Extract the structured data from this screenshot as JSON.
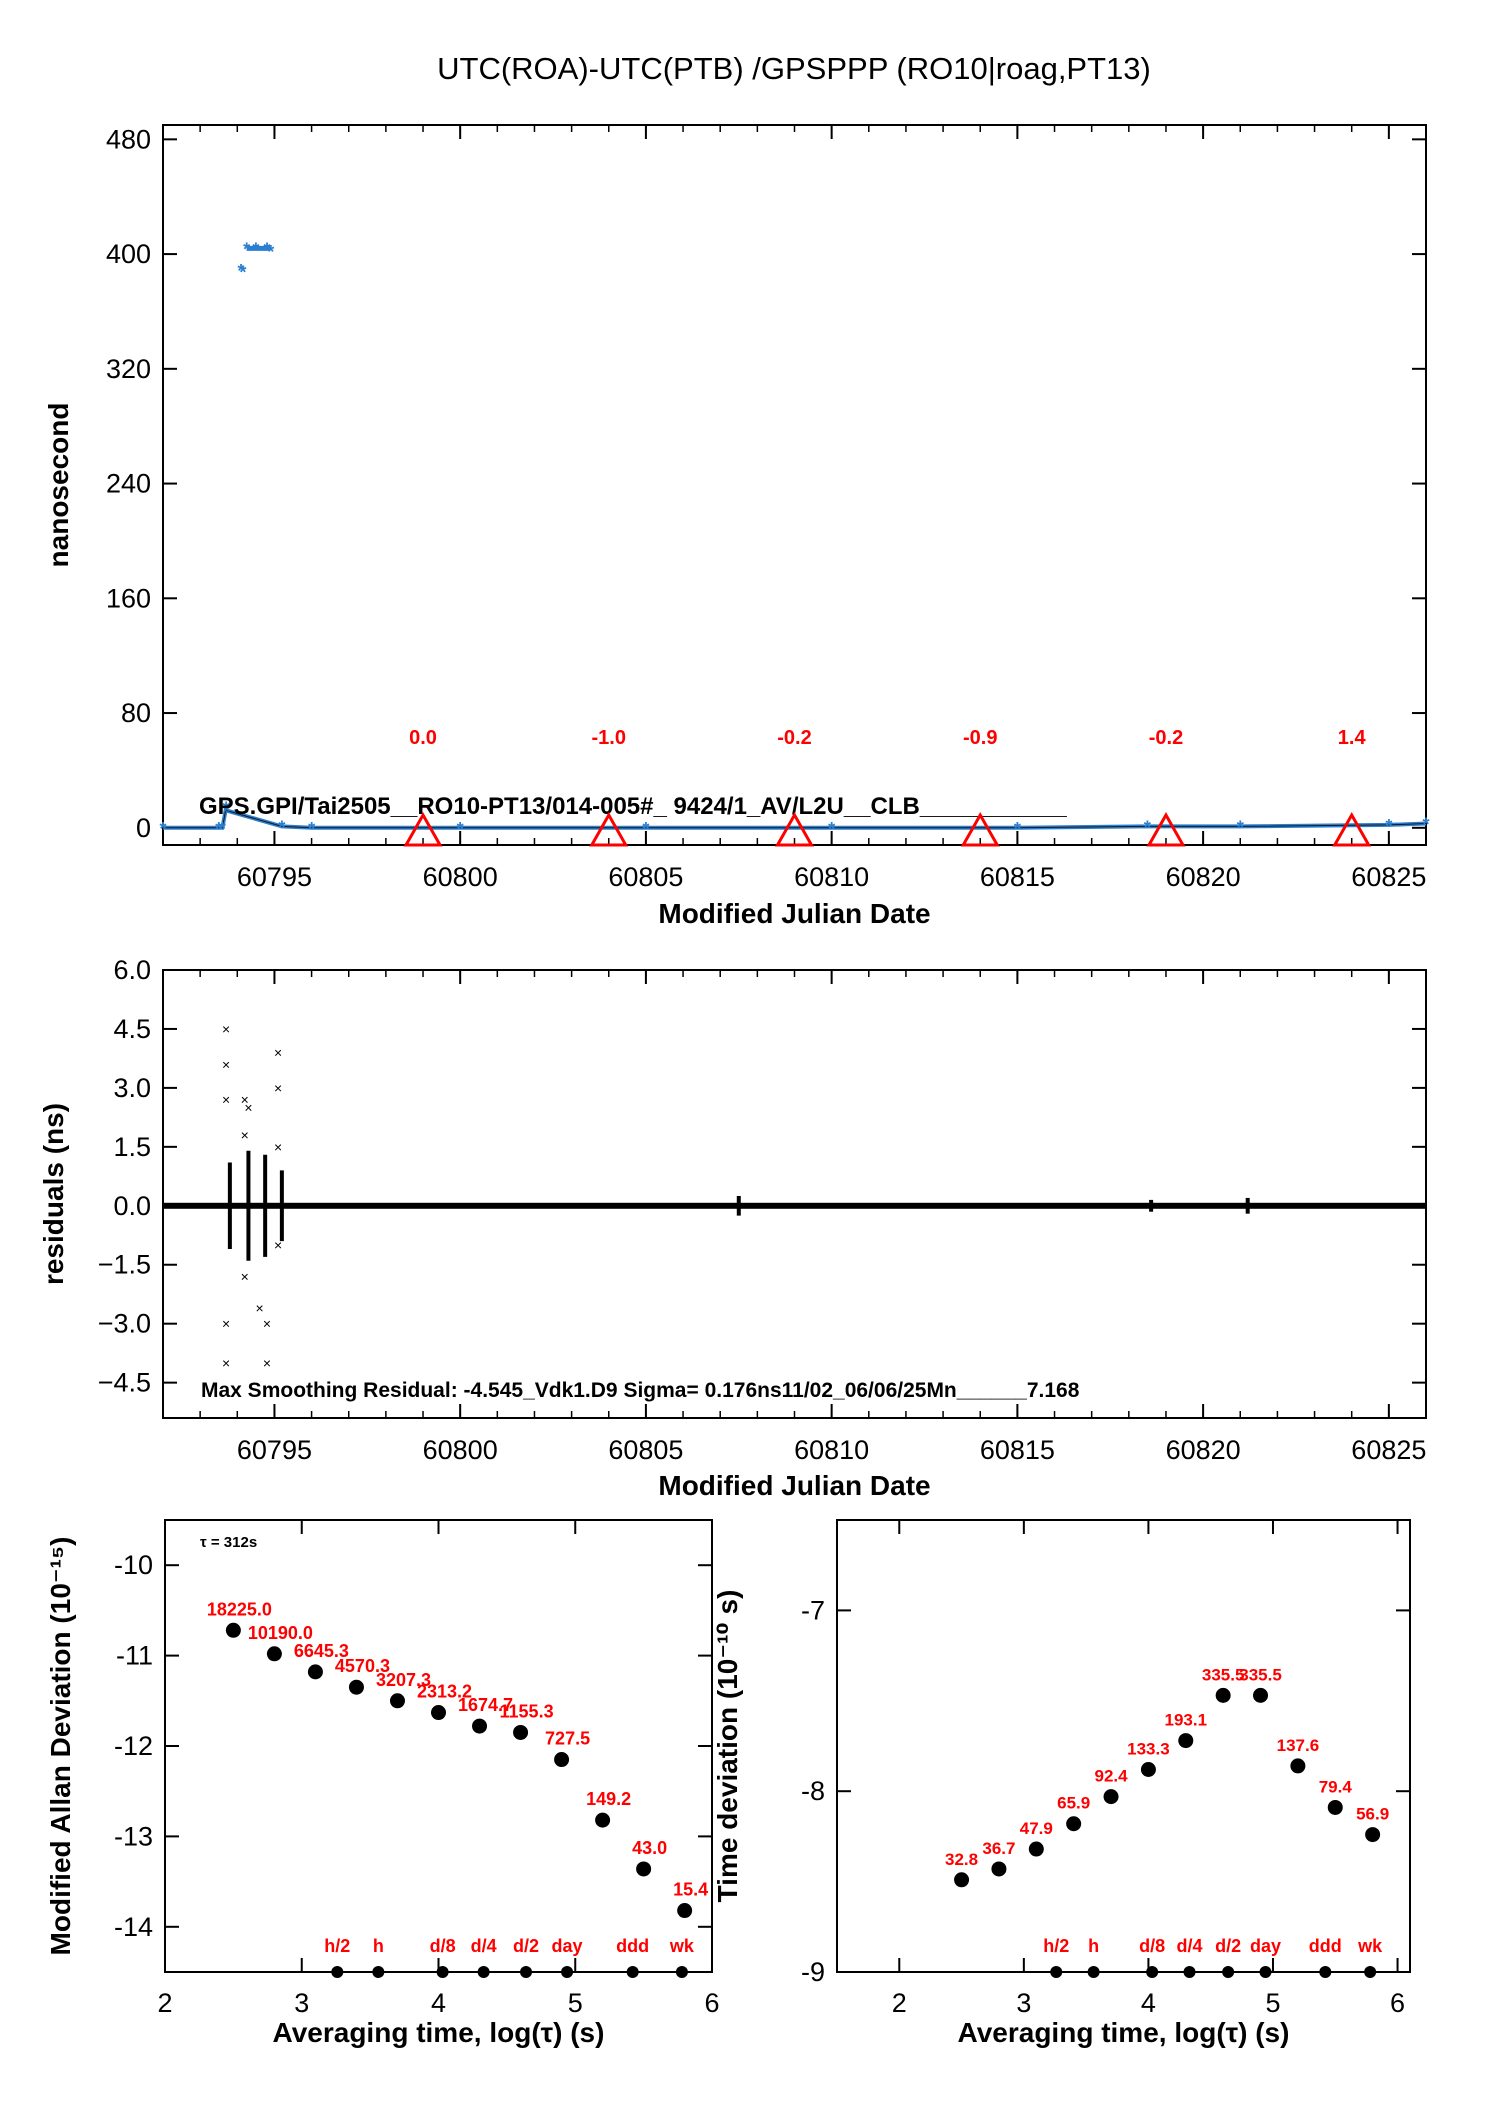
{
  "page": {
    "title": "UTC(ROA)-UTC(PTB)  /GPSPPP  (RO10|roag,PT13)"
  },
  "colors": {
    "accent_red": "#ff0000",
    "series_blue": "#2b7fd1",
    "axis": "#000000"
  },
  "chart_data": [
    {
      "id": "panel1",
      "type": "scatter",
      "xlabel": "Modified Julian Date",
      "ylabel": "nanosecond",
      "xlim": [
        60792,
        60826
      ],
      "ylim": [
        -12,
        490
      ],
      "xticks": [
        60795,
        60800,
        60805,
        60810,
        60815,
        60820,
        60825
      ],
      "yticks": [
        0,
        80,
        160,
        240,
        320,
        400,
        480
      ],
      "annotation": "GPS.GPI/Tai2505__RO10-PT13/014-005#_  9424/1_AV/L2U__CLB___________",
      "markers": [
        {
          "x": 60799,
          "label": "0.0"
        },
        {
          "x": 60804,
          "label": "-1.0"
        },
        {
          "x": 60809,
          "label": "-0.2"
        },
        {
          "x": 60814,
          "label": "-0.9"
        },
        {
          "x": 60819,
          "label": "-0.2"
        },
        {
          "x": 60824,
          "label": "1.4"
        }
      ],
      "series": [
        {
          "points": [
            [
              60792,
              0
            ],
            [
              60793.5,
              0
            ],
            [
              60793.6,
              0
            ],
            [
              60793.7,
              14
            ],
            [
              60793.72,
              12
            ],
            [
              60794.1,
              389
            ],
            [
              60794.15,
              388
            ],
            [
              60794.25,
              404
            ],
            [
              60794.5,
              404
            ],
            [
              60794.8,
              404
            ],
            [
              60794.9,
              402
            ],
            [
              60795.2,
              1
            ],
            [
              60796,
              0
            ],
            [
              60800,
              0
            ],
            [
              60805,
              0
            ],
            [
              60810,
              0
            ],
            [
              60815,
              0
            ],
            [
              60818.5,
              1
            ],
            [
              60821,
              1
            ],
            [
              60825,
              2
            ],
            [
              60826,
              3
            ]
          ]
        }
      ]
    },
    {
      "id": "panel2",
      "type": "scatter",
      "xlabel": "Modified Julian Date",
      "ylabel": "residuals (ns)",
      "xlim": [
        60792,
        60826
      ],
      "ylim": [
        -5.4,
        6.0
      ],
      "xticks": [
        60795,
        60800,
        60805,
        60810,
        60815,
        60820,
        60825
      ],
      "yticks": [
        -4.5,
        -3.0,
        -1.5,
        0.0,
        1.5,
        3.0,
        4.5,
        6.0
      ],
      "ytick_labels": [
        "−4.5",
        "−3.0",
        "−1.5",
        "0.0",
        "1.5",
        "3.0",
        "4.5",
        "6.0"
      ],
      "annotation": "Max Smoothing Residual: -4.545_Vdk1.D9  Sigma= 0.176ns11/02_06/06/25Mn______7.168",
      "series": [
        {
          "name": "residuals",
          "outliers": [
            [
              60793.7,
              4.5
            ],
            [
              60793.7,
              3.6
            ],
            [
              60793.7,
              2.7
            ],
            [
              60793.7,
              -3.0
            ],
            [
              60793.7,
              -4.0
            ],
            [
              60794.2,
              2.7
            ],
            [
              60794.2,
              1.8
            ],
            [
              60794.2,
              -1.8
            ],
            [
              60794.3,
              2.5
            ],
            [
              60794.6,
              -2.6
            ],
            [
              60794.8,
              -4.0
            ],
            [
              60794.8,
              -3.0
            ],
            [
              60795.1,
              3.9
            ],
            [
              60795.1,
              3.0
            ],
            [
              60795.1,
              1.5
            ],
            [
              60795.1,
              -1.0
            ]
          ]
        }
      ]
    },
    {
      "id": "panel3",
      "type": "scatter",
      "xlabel": "Averaging time, log(τ) (s)",
      "ylabel": "Modified Allan Deviation (10⁻¹⁵)",
      "xlim": [
        2,
        6
      ],
      "ylim": [
        -14.5,
        -9.5
      ],
      "xticks": [
        2,
        3,
        4,
        5,
        6
      ],
      "yticks": [
        -14,
        -13,
        -12,
        -11,
        -10
      ],
      "tau_note": "τ = 312s",
      "points": [
        {
          "x": 2.5,
          "y": -10.72,
          "label": "18225.0"
        },
        {
          "x": 2.8,
          "y": -10.98,
          "label": "10190.0"
        },
        {
          "x": 3.1,
          "y": -11.18,
          "label": "6645.3"
        },
        {
          "x": 3.4,
          "y": -11.35,
          "label": "4570.3"
        },
        {
          "x": 3.7,
          "y": -11.5,
          "label": "3207.3"
        },
        {
          "x": 4.0,
          "y": -11.63,
          "label": "2313.2"
        },
        {
          "x": 4.3,
          "y": -11.78,
          "label": "1674.7"
        },
        {
          "x": 4.6,
          "y": -11.85,
          "label": "1155.3"
        },
        {
          "x": 4.9,
          "y": -12.15,
          "label": "727.5"
        },
        {
          "x": 5.2,
          "y": -12.82,
          "label": "149.2"
        },
        {
          "x": 5.5,
          "y": -13.36,
          "label": "43.0"
        },
        {
          "x": 5.8,
          "y": -13.82,
          "label": "15.4"
        }
      ],
      "markers": [
        {
          "x": 3.26,
          "label": "h/2"
        },
        {
          "x": 3.56,
          "label": "h"
        },
        {
          "x": 4.03,
          "label": "d/8"
        },
        {
          "x": 4.33,
          "label": "d/4"
        },
        {
          "x": 4.64,
          "label": "d/2"
        },
        {
          "x": 4.94,
          "label": "day"
        },
        {
          "x": 5.42,
          "label": "ddd"
        },
        {
          "x": 5.78,
          "label": "wk"
        }
      ]
    },
    {
      "id": "panel4",
      "type": "scatter",
      "xlabel": "Averaging time, log(τ) (s)",
      "ylabel": "Time deviation (10⁻¹⁰ s)",
      "xlim": [
        1.5,
        6.1
      ],
      "ylim": [
        -9,
        -6.5
      ],
      "xticks": [
        2,
        3,
        4,
        5,
        6
      ],
      "yticks": [
        -9,
        -8,
        -7
      ],
      "points": [
        {
          "x": 2.5,
          "y": -8.49,
          "label": "32.8"
        },
        {
          "x": 2.8,
          "y": -8.43,
          "label": "36.7"
        },
        {
          "x": 3.1,
          "y": -8.32,
          "label": "47.9"
        },
        {
          "x": 3.4,
          "y": -8.18,
          "label": "65.9"
        },
        {
          "x": 3.7,
          "y": -8.03,
          "label": "92.4"
        },
        {
          "x": 4.0,
          "y": -7.88,
          "label": "133.3"
        },
        {
          "x": 4.3,
          "y": -7.72,
          "label": "193.1"
        },
        {
          "x": 4.6,
          "y": -7.47,
          "label": "335.5"
        },
        {
          "x": 4.9,
          "y": -7.47,
          "label": "335.5"
        },
        {
          "x": 5.2,
          "y": -7.86,
          "label": "137.6"
        },
        {
          "x": 5.5,
          "y": -8.09,
          "label": "79.4"
        },
        {
          "x": 5.8,
          "y": -8.24,
          "label": "56.9"
        }
      ],
      "markers": [
        {
          "x": 3.26,
          "label": "h/2"
        },
        {
          "x": 3.56,
          "label": "h"
        },
        {
          "x": 4.03,
          "label": "d/8"
        },
        {
          "x": 4.33,
          "label": "d/4"
        },
        {
          "x": 4.64,
          "label": "d/2"
        },
        {
          "x": 4.94,
          "label": "day"
        },
        {
          "x": 5.42,
          "label": "ddd"
        },
        {
          "x": 5.78,
          "label": "wk"
        }
      ]
    }
  ]
}
